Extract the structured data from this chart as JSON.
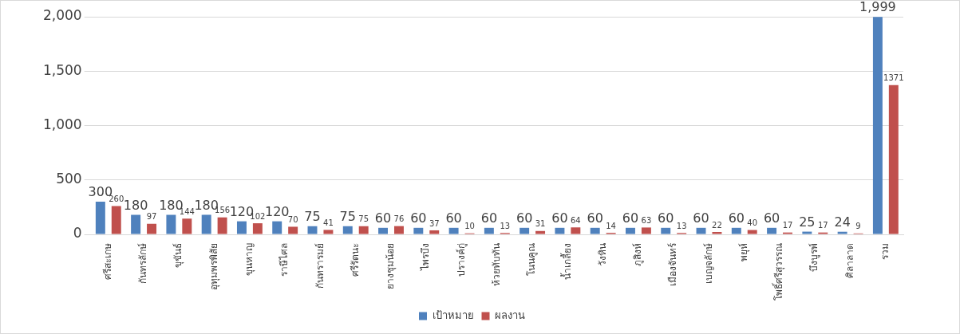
{
  "chart_data": {
    "type": "bar",
    "categories": [
      "ศรีสะเกษ",
      "กันทรลักษ์",
      "ขุขันธ์",
      "อุทุมพรพิสัย",
      "ขุนหาญ",
      "ราษีไศล",
      "กันทรารมย์",
      "ศรีรัตนะ",
      "ยางชุมน้อย",
      "ไพรบึง",
      "ปรางค์กู่",
      "ห้วยทับทัน",
      "โนนคูณ",
      "น้ำเกลี้ยง",
      "วังหิน",
      "ภูสิงห์",
      "เมืองจันทร์",
      "เบญจลักษ์",
      "พยุห์",
      "โพธิ์ศรีสุวรรณ",
      "บึงบูรพ์",
      "ศิลาลาด",
      "รวม"
    ],
    "series": [
      {
        "name": "เป้าหมาย",
        "color": "#4f81bd",
        "values": [
          300,
          180,
          180,
          180,
          120,
          120,
          75,
          75,
          60,
          60,
          60,
          60,
          60,
          60,
          60,
          60,
          60,
          60,
          60,
          60,
          25,
          24,
          1999
        ],
        "value_labels": [
          "300",
          "180",
          "180",
          "180",
          "120",
          "120",
          "75",
          "75",
          "60",
          "60",
          "60",
          "60",
          "60",
          "60",
          "60",
          "60",
          "60",
          "60",
          "60",
          "60",
          "25",
          "24",
          "1,999"
        ]
      },
      {
        "name": "ผลงาน",
        "color": "#c0504d",
        "values": [
          260,
          97,
          144,
          156,
          102,
          70,
          41,
          75,
          76,
          37,
          10,
          13,
          31,
          64,
          14,
          63,
          13,
          22,
          40,
          17,
          17,
          9,
          1371
        ],
        "value_labels": [
          "260",
          "97",
          "144",
          "156",
          "102",
          "70",
          "41",
          "75",
          "76",
          "37",
          "10",
          "13",
          "31",
          "64",
          "14",
          "63",
          "13",
          "22",
          "40",
          "17",
          "17",
          "9",
          "1371"
        ]
      }
    ],
    "ylim": [
      0,
      2000
    ],
    "yticks": [
      {
        "value": 0,
        "label": "0"
      },
      {
        "value": 500,
        "label": "500"
      },
      {
        "value": 1000,
        "label": "1,000"
      },
      {
        "value": 1500,
        "label": "1,500"
      },
      {
        "value": 2000,
        "label": "2,000"
      }
    ],
    "grid": "y",
    "legend": "bottom"
  }
}
